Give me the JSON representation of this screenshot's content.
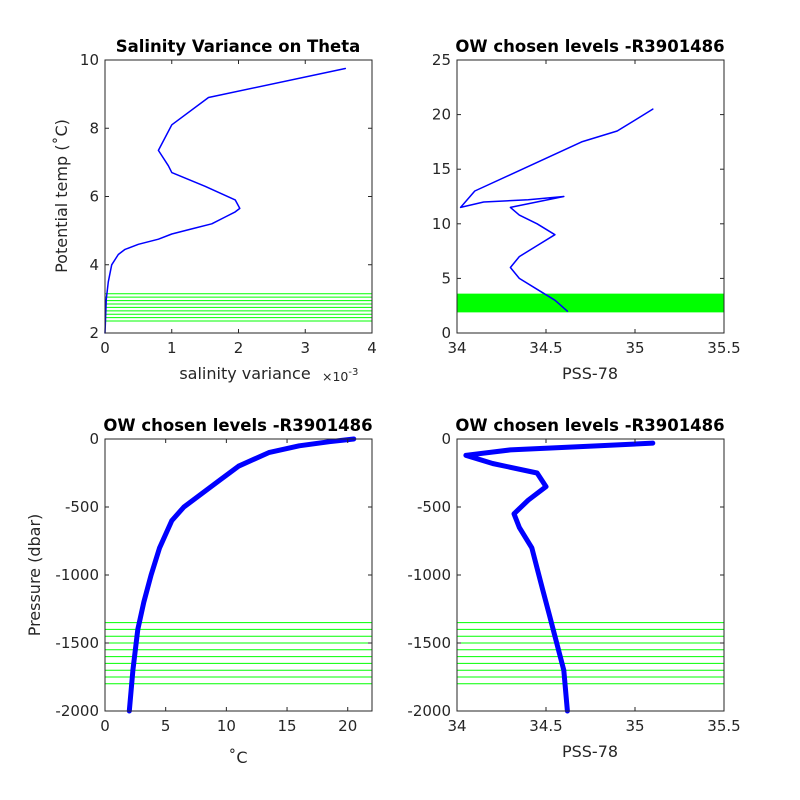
{
  "chart_data": [
    {
      "type": "line",
      "title": "Salinity Variance on Theta",
      "xlabel": "salinity variance",
      "x_exponent": "×10",
      "x_exponent_power": "-3",
      "ylabel": "Potential temp (˚C)",
      "xlim": [
        0,
        4
      ],
      "ylim": [
        2,
        10
      ],
      "xticks": [
        0,
        1,
        2,
        3,
        4
      ],
      "xticklabels": [
        "0",
        "1",
        "2",
        "3",
        "4"
      ],
      "yticks": [
        2,
        4,
        6,
        8,
        10
      ],
      "yticklabels": [
        "2",
        "4",
        "6",
        "8",
        "10"
      ],
      "series": [
        {
          "color": "#0000ff",
          "x": [
            0.0,
            0.02,
            0.05,
            0.1,
            0.2,
            0.3,
            0.5,
            0.8,
            1.0,
            1.3,
            1.6,
            1.8,
            1.95,
            2.02,
            1.95,
            1.5,
            1.0,
            0.95,
            0.8,
            1.0,
            1.55,
            3.6
          ],
          "y": [
            2.0,
            3.0,
            3.5,
            4.0,
            4.3,
            4.45,
            4.6,
            4.75,
            4.9,
            5.05,
            5.2,
            5.4,
            5.55,
            5.65,
            5.9,
            6.3,
            6.7,
            6.9,
            7.35,
            8.1,
            8.9,
            9.75
          ]
        }
      ],
      "hlines": {
        "color": "#00ff00",
        "y": [
          2.35,
          2.45,
          2.55,
          2.65,
          2.75,
          2.85,
          2.95,
          3.05,
          3.15
        ]
      }
    },
    {
      "type": "line",
      "title": "OW chosen levels -R3901486",
      "xlabel": "PSS-78",
      "ylabel": "",
      "xlim": [
        34,
        35.5
      ],
      "ylim": [
        0,
        25
      ],
      "xticks": [
        34,
        34.5,
        35,
        35.5
      ],
      "xticklabels": [
        "34",
        "34.5",
        "35",
        "35.5"
      ],
      "yticks": [
        0,
        5,
        10,
        15,
        20,
        25
      ],
      "yticklabels": [
        "0",
        "5",
        "10",
        "15",
        "20",
        "25"
      ],
      "series": [
        {
          "color": "#0000ff",
          "x": [
            34.62,
            34.55,
            34.45,
            34.35,
            34.3,
            34.35,
            34.45,
            34.55,
            34.45,
            34.35,
            34.3,
            34.6,
            34.4,
            34.15,
            34.02,
            34.1,
            34.3,
            34.5,
            34.7,
            34.9,
            35.0,
            35.1
          ],
          "y": [
            2.0,
            3.0,
            4.0,
            5.0,
            6.0,
            7.0,
            8.0,
            9.0,
            10.0,
            10.8,
            11.5,
            12.5,
            12.2,
            12.0,
            11.5,
            13.0,
            14.5,
            16.0,
            17.5,
            18.5,
            19.5,
            20.5
          ]
        }
      ],
      "hlines": {
        "color": "#00ff00",
        "y": [
          2.35,
          2.45,
          2.55,
          2.65,
          2.75,
          2.85,
          2.95,
          3.05,
          3.15
        ]
      }
    },
    {
      "type": "line",
      "title": "OW chosen levels -R3901486",
      "xlabel": "˚C",
      "ylabel": "Pressure (dbar)",
      "xlim": [
        0,
        22
      ],
      "ylim": [
        -2000,
        0
      ],
      "xticks": [
        0,
        5,
        10,
        15,
        20
      ],
      "xticklabels": [
        "0",
        "5",
        "10",
        "15",
        "20"
      ],
      "yticks": [
        0,
        -500,
        -1000,
        -1500,
        -2000
      ],
      "yticklabels": [
        "0",
        "-500",
        "-1000",
        "-1500",
        "-2000"
      ],
      "series": [
        {
          "color": "#0000ff",
          "x": [
            2.0,
            2.3,
            2.7,
            3.2,
            3.8,
            4.5,
            5.5,
            6.5,
            8.0,
            9.5,
            11.0,
            13.5,
            16.0,
            18.5,
            20.5
          ],
          "y": [
            -2000,
            -1700,
            -1400,
            -1200,
            -1000,
            -800,
            -600,
            -500,
            -400,
            -300,
            -200,
            -100,
            -50,
            -20,
            0
          ]
        }
      ],
      "hlines": {
        "color": "#00ff00",
        "y": [
          -1350,
          -1400,
          -1450,
          -1500,
          -1550,
          -1600,
          -1650,
          -1700,
          -1750,
          -1800
        ]
      }
    },
    {
      "type": "line",
      "title": "OW chosen levels -R3901486",
      "xlabel": "PSS-78",
      "ylabel": "",
      "xlim": [
        34,
        35.5
      ],
      "ylim": [
        -2000,
        0
      ],
      "xticks": [
        34,
        34.5,
        35,
        35.5
      ],
      "xticklabels": [
        "34",
        "34.5",
        "35",
        "35.5"
      ],
      "yticks": [
        0,
        -500,
        -1000,
        -1500,
        -2000
      ],
      "yticklabels": [
        "0",
        "-500",
        "-1000",
        "-1500",
        "-2000"
      ],
      "series": [
        {
          "color": "#0000ff",
          "x": [
            34.62,
            34.6,
            34.56,
            34.52,
            34.48,
            34.45,
            34.42,
            34.35,
            34.32,
            34.4,
            34.5,
            34.45,
            34.2,
            34.05,
            34.3,
            34.8,
            35.1
          ],
          "y": [
            -2000,
            -1700,
            -1500,
            -1300,
            -1100,
            -950,
            -800,
            -650,
            -550,
            -450,
            -350,
            -250,
            -180,
            -120,
            -80,
            -50,
            -30
          ]
        }
      ],
      "hlines": {
        "color": "#00ff00",
        "y": [
          -1350,
          -1400,
          -1450,
          -1500,
          -1550,
          -1600,
          -1650,
          -1700,
          -1750,
          -1800
        ]
      }
    }
  ]
}
